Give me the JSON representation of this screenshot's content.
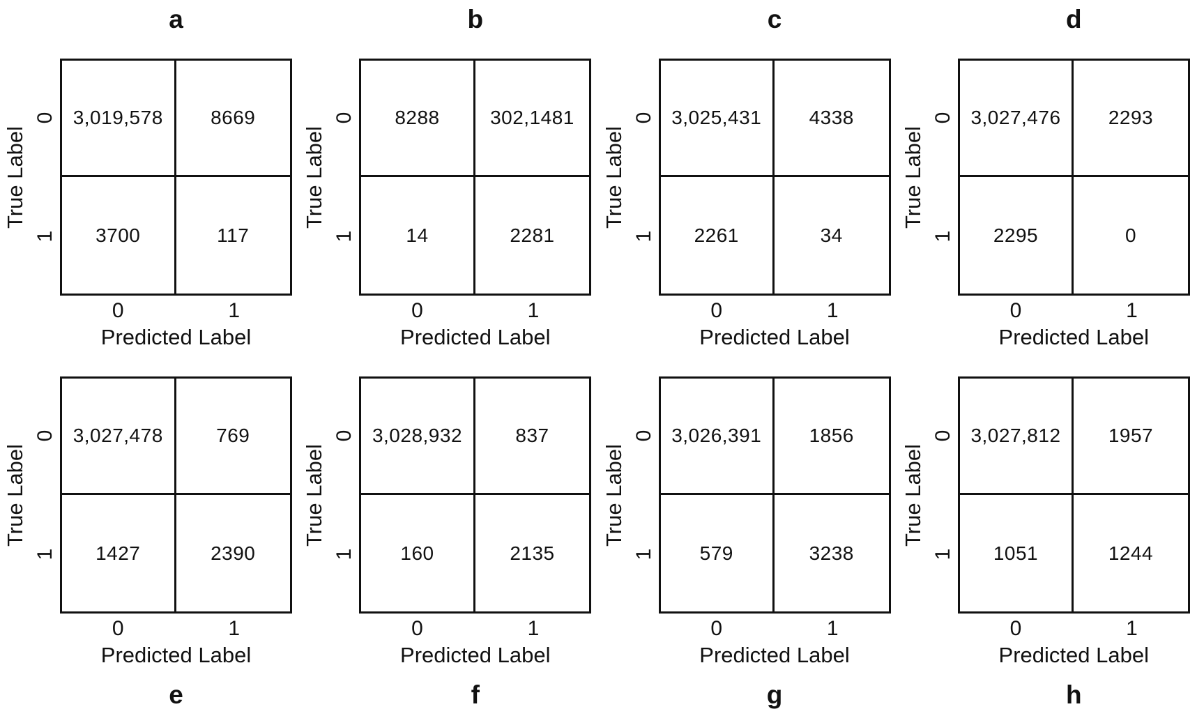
{
  "figure": {
    "background": "#ffffff",
    "text_color": "#111111",
    "line_color": "#111111",
    "x_axis_label": "Predicted Label",
    "y_axis_label": "True Label",
    "x_ticks": [
      "0",
      "1"
    ],
    "y_ticks": [
      "0",
      "1"
    ],
    "panel_letters": [
      "a",
      "b",
      "c",
      "d",
      "e",
      "f",
      "g",
      "h"
    ]
  },
  "chart_data": [
    {
      "type": "heatmap",
      "panel": "a",
      "row": "top",
      "xlabel": "Predicted Label",
      "ylabel": "True Label",
      "x_ticks": [
        "0",
        "1"
      ],
      "y_ticks": [
        "0",
        "1"
      ],
      "cells_display": [
        [
          "3,019,578",
          "8669"
        ],
        [
          "3700",
          "117"
        ]
      ],
      "values": [
        [
          3019578,
          8669
        ],
        [
          3700,
          117
        ]
      ]
    },
    {
      "type": "heatmap",
      "panel": "b",
      "row": "top",
      "xlabel": "Predicted Label",
      "ylabel": "True Label",
      "x_ticks": [
        "0",
        "1"
      ],
      "y_ticks": [
        "0",
        "1"
      ],
      "cells_display": [
        [
          "8288",
          "302,1481"
        ],
        [
          "14",
          "2281"
        ]
      ],
      "values": [
        [
          8288,
          3021481
        ],
        [
          14,
          2281
        ]
      ]
    },
    {
      "type": "heatmap",
      "panel": "c",
      "row": "top",
      "xlabel": "Predicted Label",
      "ylabel": "True Label",
      "x_ticks": [
        "0",
        "1"
      ],
      "y_ticks": [
        "0",
        "1"
      ],
      "cells_display": [
        [
          "3,025,431",
          "4338"
        ],
        [
          "2261",
          "34"
        ]
      ],
      "values": [
        [
          3025431,
          4338
        ],
        [
          2261,
          34
        ]
      ]
    },
    {
      "type": "heatmap",
      "panel": "d",
      "row": "top",
      "xlabel": "Predicted Label",
      "ylabel": "True Label",
      "x_ticks": [
        "0",
        "1"
      ],
      "y_ticks": [
        "0",
        "1"
      ],
      "cells_display": [
        [
          "3,027,476",
          "2293"
        ],
        [
          "2295",
          "0"
        ]
      ],
      "values": [
        [
          3027476,
          2293
        ],
        [
          2295,
          0
        ]
      ]
    },
    {
      "type": "heatmap",
      "panel": "e",
      "row": "bottom",
      "xlabel": "Predicted Label",
      "ylabel": "True Label",
      "x_ticks": [
        "0",
        "1"
      ],
      "y_ticks": [
        "0",
        "1"
      ],
      "cells_display": [
        [
          "3,027,478",
          "769"
        ],
        [
          "1427",
          "2390"
        ]
      ],
      "values": [
        [
          3027478,
          769
        ],
        [
          1427,
          2390
        ]
      ]
    },
    {
      "type": "heatmap",
      "panel": "f",
      "row": "bottom",
      "xlabel": "Predicted Label",
      "ylabel": "True Label",
      "x_ticks": [
        "0",
        "1"
      ],
      "y_ticks": [
        "0",
        "1"
      ],
      "cells_display": [
        [
          "3,028,932",
          "837"
        ],
        [
          "160",
          "2135"
        ]
      ],
      "values": [
        [
          3028932,
          837
        ],
        [
          160,
          2135
        ]
      ]
    },
    {
      "type": "heatmap",
      "panel": "g",
      "row": "bottom",
      "xlabel": "Predicted Label",
      "ylabel": "True Label",
      "x_ticks": [
        "0",
        "1"
      ],
      "y_ticks": [
        "0",
        "1"
      ],
      "cells_display": [
        [
          "3,026,391",
          "1856"
        ],
        [
          "579",
          "3238"
        ]
      ],
      "values": [
        [
          3026391,
          1856
        ],
        [
          579,
          3238
        ]
      ]
    },
    {
      "type": "heatmap",
      "panel": "h",
      "row": "bottom",
      "xlabel": "Predicted Label",
      "ylabel": "True Label",
      "x_ticks": [
        "0",
        "1"
      ],
      "y_ticks": [
        "0",
        "1"
      ],
      "cells_display": [
        [
          "3,027,812",
          "1957"
        ],
        [
          "1051",
          "1244"
        ]
      ],
      "values": [
        [
          3027812,
          1957
        ],
        [
          1051,
          1244
        ]
      ]
    }
  ]
}
